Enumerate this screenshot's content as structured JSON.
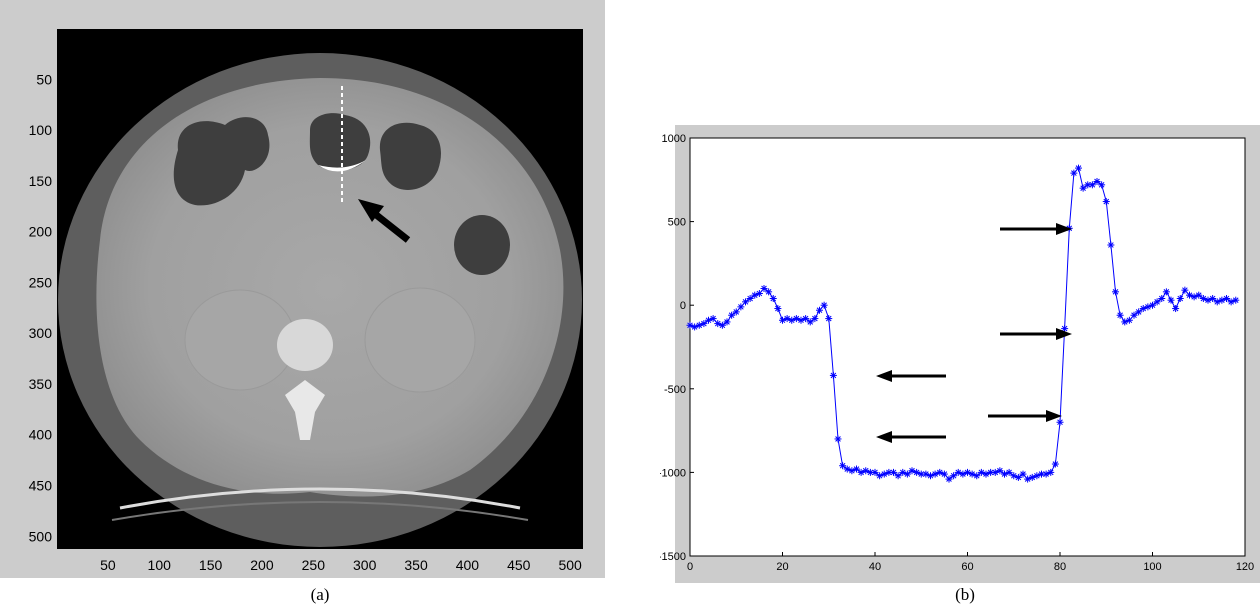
{
  "panel_a": {
    "caption": "(a)",
    "x_ticks": [
      "50",
      "100",
      "150",
      "200",
      "250",
      "300",
      "350",
      "400",
      "450",
      "500"
    ],
    "y_ticks": [
      "50",
      "100",
      "150",
      "200",
      "250",
      "300",
      "350",
      "400",
      "450",
      "500"
    ],
    "x_values": [
      50,
      100,
      150,
      200,
      250,
      300,
      350,
      400,
      450,
      500
    ],
    "y_values": [
      50,
      100,
      150,
      200,
      250,
      300,
      350,
      400,
      450,
      500
    ],
    "axis_range": [
      1,
      512
    ]
  },
  "panel_b": {
    "caption": "(b)"
  },
  "chart_data": {
    "type": "line",
    "title": "",
    "xlabel": "",
    "ylabel": "",
    "xlim": [
      0,
      120
    ],
    "ylim": [
      -1500,
      1000
    ],
    "x_ticks": [
      "0",
      "20",
      "40",
      "60",
      "80",
      "100",
      "120"
    ],
    "y_ticks": [
      "1000",
      "500",
      "0",
      "-500",
      "-1000",
      "-1500"
    ],
    "x_tick_values": [
      0,
      20,
      40,
      60,
      80,
      100,
      120
    ],
    "y_tick_values": [
      1000,
      500,
      0,
      -500,
      -1000,
      -1500
    ],
    "grid": false,
    "marker": "asterisk",
    "line_color": "#0000ff",
    "series": [
      {
        "x": [
          0,
          1,
          2,
          3,
          4,
          5,
          6,
          7,
          8,
          9,
          10,
          11,
          12,
          13,
          14,
          15,
          16,
          17,
          18,
          19,
          20,
          21,
          22,
          23,
          24,
          25,
          26,
          27,
          28,
          29,
          30,
          31,
          32,
          33,
          34,
          35,
          36,
          37,
          38,
          39,
          40,
          41,
          42,
          43,
          44,
          45,
          46,
          47,
          48,
          49,
          50,
          51,
          52,
          53,
          54,
          55,
          56,
          57,
          58,
          59,
          60,
          61,
          62,
          63,
          64,
          65,
          66,
          67,
          68,
          69,
          70,
          71,
          72,
          73,
          74,
          75,
          76,
          77,
          78,
          79,
          80,
          81,
          82,
          83,
          84,
          85,
          86,
          87,
          88,
          89,
          90,
          91,
          92,
          93,
          94,
          95,
          96,
          97,
          98,
          99,
          100,
          101,
          102,
          103,
          104,
          105,
          106,
          107,
          108,
          109,
          110,
          111,
          112,
          113,
          114,
          115,
          116,
          117,
          118
        ],
        "values": [
          -120,
          -130,
          -120,
          -110,
          -90,
          -80,
          -110,
          -120,
          -100,
          -60,
          -40,
          -10,
          20,
          40,
          60,
          70,
          100,
          80,
          40,
          -20,
          -90,
          -80,
          -90,
          -80,
          -90,
          -80,
          -100,
          -80,
          -30,
          0,
          -80,
          -420,
          -800,
          -960,
          -980,
          -990,
          -980,
          -1000,
          -990,
          -1000,
          -1000,
          -1020,
          -1010,
          -1000,
          -1000,
          -1020,
          -1000,
          -1010,
          -990,
          -1000,
          -1010,
          -1010,
          -1020,
          -1010,
          -1000,
          -1010,
          -1040,
          -1020,
          -1000,
          -1010,
          -1000,
          -1010,
          -1020,
          -1000,
          -1010,
          -1000,
          -1000,
          -990,
          -1010,
          -1000,
          -1020,
          -1030,
          -1010,
          -1040,
          -1030,
          -1020,
          -1010,
          -1010,
          -1000,
          -950,
          -700,
          -140,
          460,
          790,
          820,
          700,
          720,
          720,
          740,
          720,
          620,
          360,
          80,
          -60,
          -100,
          -90,
          -60,
          -40,
          -20,
          -10,
          0,
          20,
          40,
          80,
          30,
          -20,
          40,
          90,
          60,
          50,
          60,
          40,
          30,
          40,
          20,
          30,
          40,
          20,
          30
        ]
      }
    ],
    "annotations": [
      {
        "label": "arrow-left",
        "y": -420
      },
      {
        "label": "arrow-left",
        "y": -800
      },
      {
        "label": "arrow-right",
        "y": 460
      },
      {
        "label": "arrow-right",
        "y": -140
      },
      {
        "label": "arrow-right",
        "y": -700
      }
    ]
  }
}
